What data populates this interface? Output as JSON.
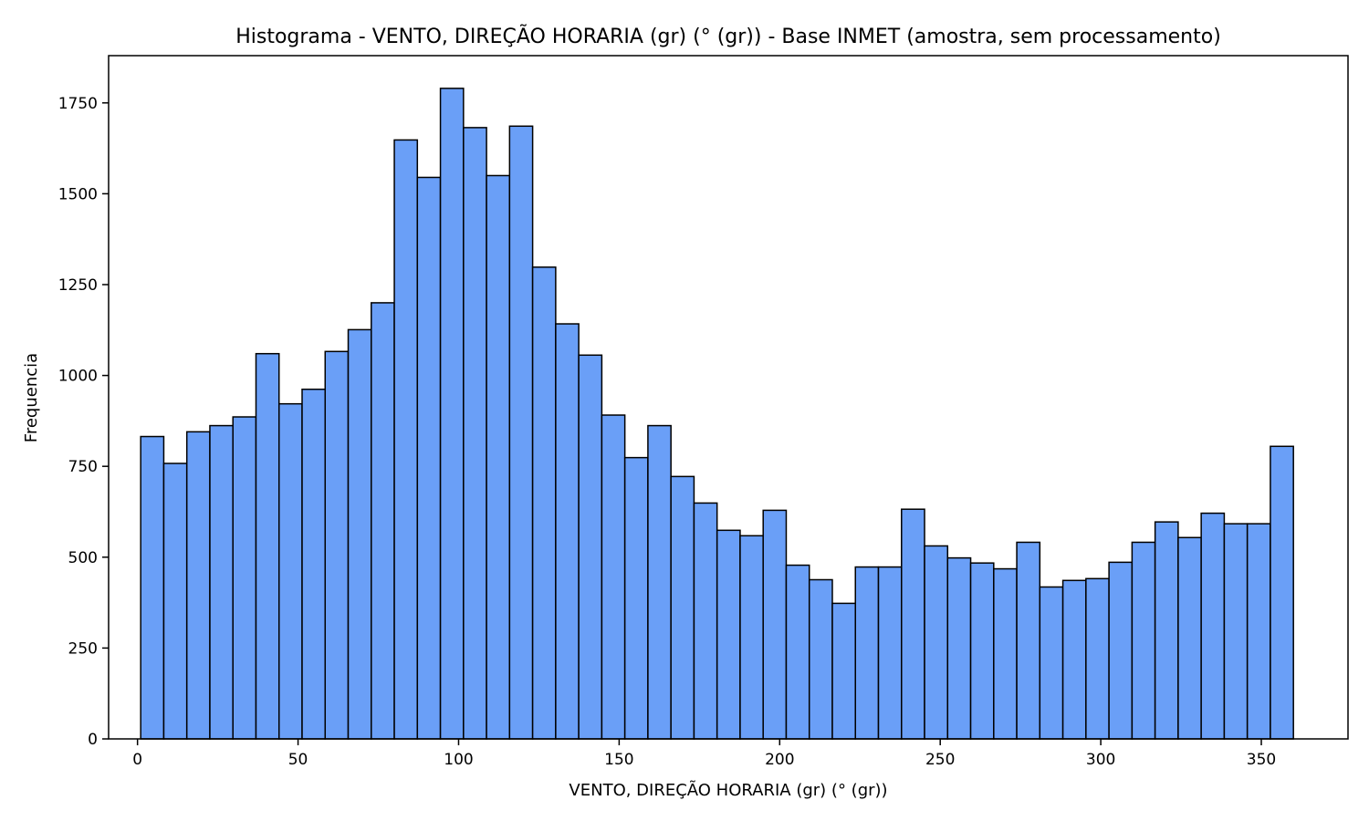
{
  "chart_data": {
    "type": "histogram",
    "title": "Histograma - VENTO, DIREÇÃO HORARIA (gr) (° (gr)) - Base INMET (amostra, sem processamento)",
    "xlabel": "VENTO, DIREÇÃO HORARIA (gr) (° (gr))",
    "ylabel": "Frequencia",
    "xlim": [
      -9,
      377
    ],
    "ylim": [
      0,
      1880
    ],
    "xticks": [
      0,
      50,
      100,
      150,
      200,
      250,
      300,
      350
    ],
    "yticks": [
      0,
      250,
      500,
      750,
      1000,
      1250,
      1500,
      1750
    ],
    "bin_start": 1,
    "bin_width": 7.18,
    "bar_color": "#6a9ff7",
    "edge_color": "#000000",
    "grid": false,
    "values": [
      832,
      758,
      845,
      862,
      886,
      1060,
      922,
      962,
      1066,
      1126,
      1200,
      1648,
      1545,
      1790,
      1682,
      1550,
      1686,
      1298,
      1142,
      1056,
      891,
      774,
      862,
      722,
      649,
      574,
      559,
      629,
      478,
      438,
      373,
      473,
      473,
      632,
      531,
      498,
      484,
      468,
      541,
      418,
      436,
      441,
      486,
      541,
      597,
      554,
      621,
      592,
      592,
      805
    ]
  }
}
